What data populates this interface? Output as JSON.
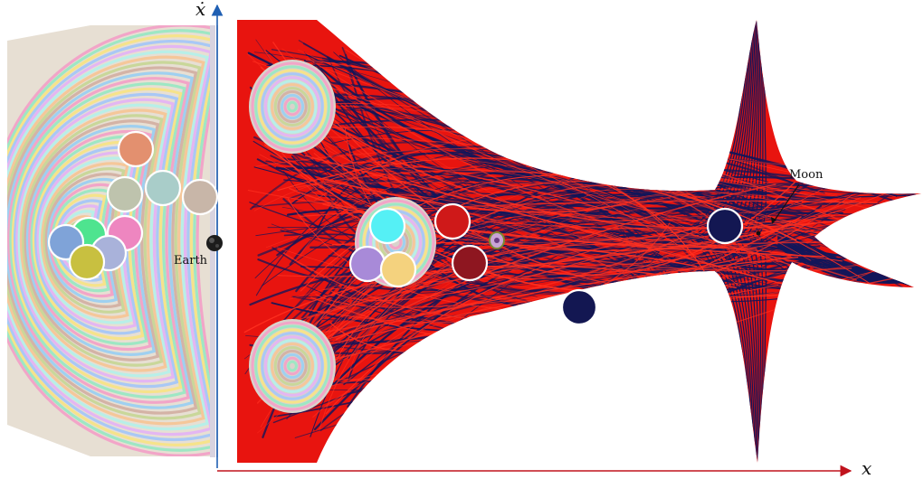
{
  "axes": {
    "x_label": "x",
    "y_label": "ẋ",
    "x_color": "#c0121c",
    "y_color": "#1f5fb3"
  },
  "labels": {
    "earth": "Earth",
    "moon": "Moon"
  },
  "colors": {
    "manifold_red": "#e8140f",
    "manifold_navy": "#12165a",
    "background": "#ffffff"
  },
  "markers": [
    {
      "name": "marker-orange",
      "color": "#e3906f"
    },
    {
      "name": "marker-sage-1",
      "color": "#bec3ad"
    },
    {
      "name": "marker-teal-light",
      "color": "#a9cdc9"
    },
    {
      "name": "marker-taupe",
      "color": "#c8b6a8"
    },
    {
      "name": "marker-pink",
      "color": "#ee86c0"
    },
    {
      "name": "marker-green",
      "color": "#4ee48f"
    },
    {
      "name": "marker-blue",
      "color": "#7fa3d8"
    },
    {
      "name": "marker-periwinkle",
      "color": "#a9b2da"
    },
    {
      "name": "marker-olive",
      "color": "#c8c040"
    },
    {
      "name": "marker-cyan",
      "color": "#55f0f5"
    },
    {
      "name": "marker-lavender",
      "color": "#a88ad8"
    },
    {
      "name": "marker-yellow",
      "color": "#f4d27e"
    },
    {
      "name": "marker-red",
      "color": "#cf1919"
    },
    {
      "name": "marker-dark-red",
      "color": "#8e1620"
    },
    {
      "name": "marker-navy-moon",
      "color": "#131752"
    },
    {
      "name": "marker-navy",
      "color": "#131752"
    }
  ]
}
